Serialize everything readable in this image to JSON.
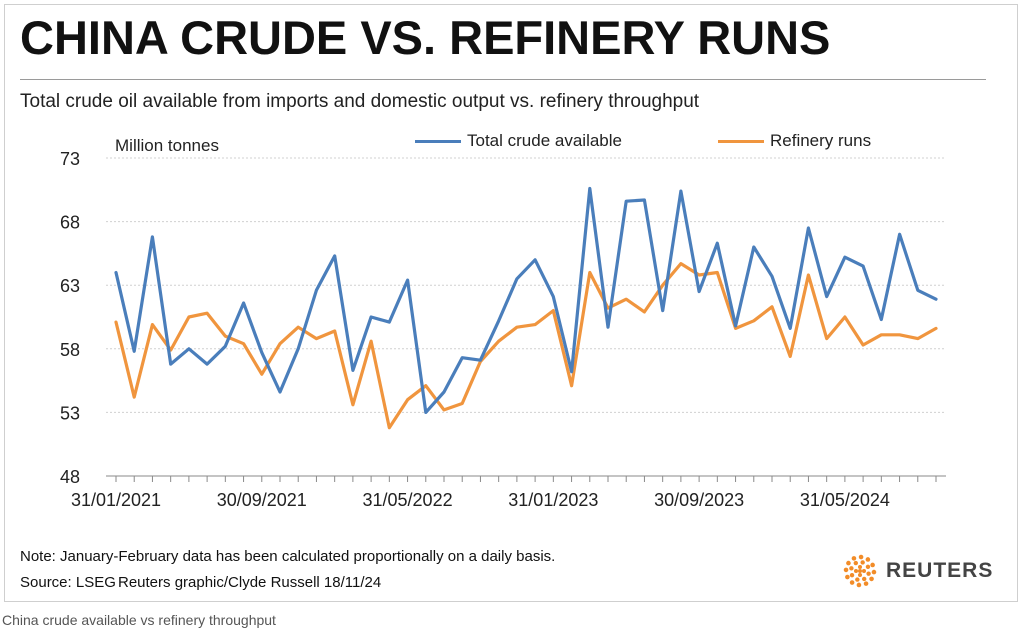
{
  "title": "CHINA CRUDE VS. REFINERY RUNS",
  "subtitle": "Total crude oil available from imports and domestic output vs. refinery throughput",
  "note": "Note: January-February data has been calculated proportionally on a daily basis.",
  "source": "Source: LSEG",
  "credit": "Reuters graphic/Clyde Russell 18/11/24",
  "logo_text": "REUTERS",
  "caption": "China crude available vs refinery throughput",
  "chart_data": {
    "type": "line",
    "ylabel": "Million tonnes",
    "ylim": [
      48,
      73
    ],
    "yticks": [
      48,
      53,
      58,
      63,
      68,
      73
    ],
    "x_tick_labels": [
      "31/01/2021",
      "30/09/2021",
      "31/05/2022",
      "31/01/2023",
      "30/09/2023",
      "31/05/2024"
    ],
    "x_tick_label_positions": [
      0,
      8,
      16,
      24,
      32,
      40
    ],
    "x": [
      "2021-01",
      "2021-02",
      "2021-03",
      "2021-04",
      "2021-05",
      "2021-06",
      "2021-07",
      "2021-08",
      "2021-09",
      "2021-10",
      "2021-11",
      "2021-12",
      "2022-01",
      "2022-02",
      "2022-03",
      "2022-04",
      "2022-05",
      "2022-06",
      "2022-07",
      "2022-08",
      "2022-09",
      "2022-10",
      "2022-11",
      "2022-12",
      "2023-01",
      "2023-02",
      "2023-03",
      "2023-04",
      "2023-05",
      "2023-06",
      "2023-07",
      "2023-08",
      "2023-09",
      "2023-10",
      "2023-11",
      "2023-12",
      "2024-01",
      "2024-02",
      "2024-03",
      "2024-04",
      "2024-05",
      "2024-06",
      "2024-07",
      "2024-08",
      "2024-09",
      "2024-10"
    ],
    "legend_position": "top",
    "grid": true,
    "series": [
      {
        "name": "Total crude available",
        "color": "#4a7ebb",
        "values": [
          64.0,
          57.8,
          66.8,
          56.8,
          58.0,
          56.8,
          58.2,
          61.6,
          57.7,
          54.6,
          58.0,
          62.6,
          65.3,
          56.3,
          60.5,
          60.1,
          63.4,
          53.0,
          54.6,
          57.3,
          57.1,
          60.2,
          63.5,
          65.0,
          62.1,
          56.2,
          70.6,
          59.7,
          69.6,
          69.7,
          61.0,
          70.4,
          62.5,
          66.3,
          59.8,
          66.0,
          63.7,
          59.6,
          67.5,
          62.1,
          65.2,
          64.5,
          60.3,
          67.0,
          62.6,
          61.9
        ]
      },
      {
        "name": "Refinery runs",
        "color": "#f0953e",
        "values": [
          60.1,
          54.2,
          59.9,
          57.9,
          60.5,
          60.8,
          59.0,
          58.4,
          56.0,
          58.4,
          59.7,
          58.8,
          59.4,
          53.6,
          58.6,
          51.8,
          54.0,
          55.1,
          53.2,
          53.7,
          57.0,
          58.6,
          59.7,
          59.9,
          61.0,
          55.1,
          64.0,
          61.2,
          61.9,
          60.9,
          63.0,
          64.7,
          63.8,
          64.0,
          59.6,
          60.2,
          61.3,
          57.4,
          63.8,
          58.8,
          60.5,
          58.3,
          59.1,
          59.1,
          58.8,
          59.6
        ]
      }
    ]
  }
}
